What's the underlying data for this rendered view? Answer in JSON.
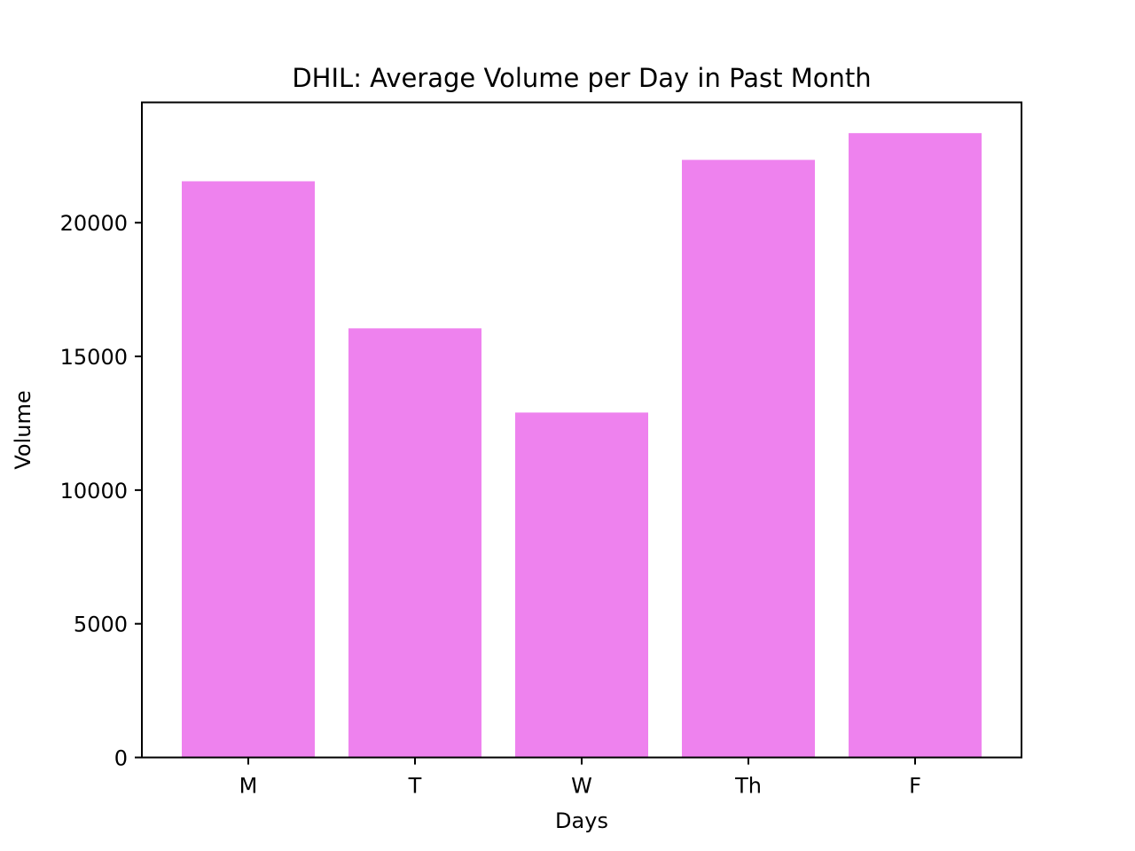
{
  "chart_data": {
    "type": "bar",
    "title": "DHIL: Average Volume per Day in Past Month",
    "xlabel": "Days",
    "ylabel": "Volume",
    "categories": [
      "M",
      "T",
      "W",
      "Th",
      "F"
    ],
    "values": [
      21550,
      16050,
      12900,
      22350,
      23350
    ],
    "ylim": [
      0,
      24500
    ],
    "yticks": [
      0,
      5000,
      10000,
      15000,
      20000
    ],
    "ytick_labels": [
      "0",
      "5000",
      "10000",
      "15000",
      "20000"
    ],
    "grid": false,
    "legend": "none",
    "bar_color": "#ee82ee"
  }
}
